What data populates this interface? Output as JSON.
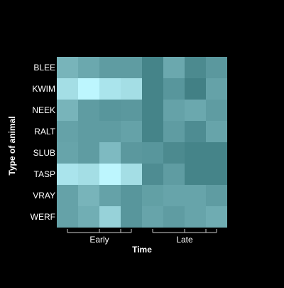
{
  "chart_data": {
    "type": "heatmap",
    "title": "",
    "xlabel": "Time",
    "ylabel": "Type of animal",
    "rows": [
      "BLEE",
      "KWIM",
      "NEEK",
      "RALT",
      "SLUB",
      "TASP",
      "VRAY",
      "WERF"
    ],
    "n_columns": 8,
    "column_groups": [
      {
        "label": "Early",
        "columns": [
          1,
          2,
          3
        ]
      },
      {
        "label": "Late",
        "columns": [
          5,
          6,
          7
        ]
      }
    ],
    "color_scale": {
      "low": "#3F7E83",
      "high": "#BDF6FE"
    },
    "values": [
      [
        0.45,
        0.35,
        0.25,
        0.25,
        0.05,
        0.35,
        0.1,
        0.22
      ],
      [
        0.8,
        1.0,
        0.85,
        0.8,
        0.05,
        0.2,
        0.02,
        0.3
      ],
      [
        0.45,
        0.25,
        0.2,
        0.22,
        0.05,
        0.3,
        0.35,
        0.25
      ],
      [
        0.3,
        0.25,
        0.25,
        0.3,
        0.05,
        0.25,
        0.12,
        0.32
      ],
      [
        0.32,
        0.25,
        0.5,
        0.22,
        0.2,
        0.1,
        0.05,
        0.05
      ],
      [
        0.85,
        0.8,
        1.0,
        0.8,
        0.12,
        0.25,
        0.05,
        0.05
      ],
      [
        0.3,
        0.45,
        0.3,
        0.2,
        0.28,
        0.32,
        0.32,
        0.25
      ],
      [
        0.3,
        0.4,
        0.7,
        0.2,
        0.32,
        0.25,
        0.32,
        0.38
      ]
    ]
  }
}
